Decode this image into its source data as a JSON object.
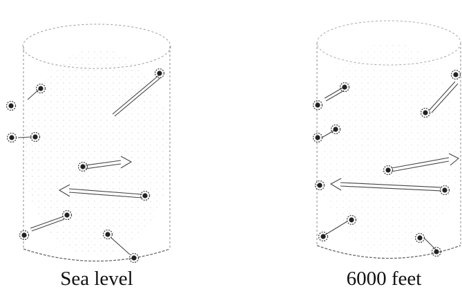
{
  "captions": {
    "left": "Sea level",
    "right": "6000 feet"
  },
  "colors": {
    "ink": "#222222",
    "stipple": "#9a9a9a",
    "background": "#ffffff"
  },
  "icons": {
    "molecule": "filled-dot-in-ring",
    "arrow": "double-line-arrow"
  }
}
